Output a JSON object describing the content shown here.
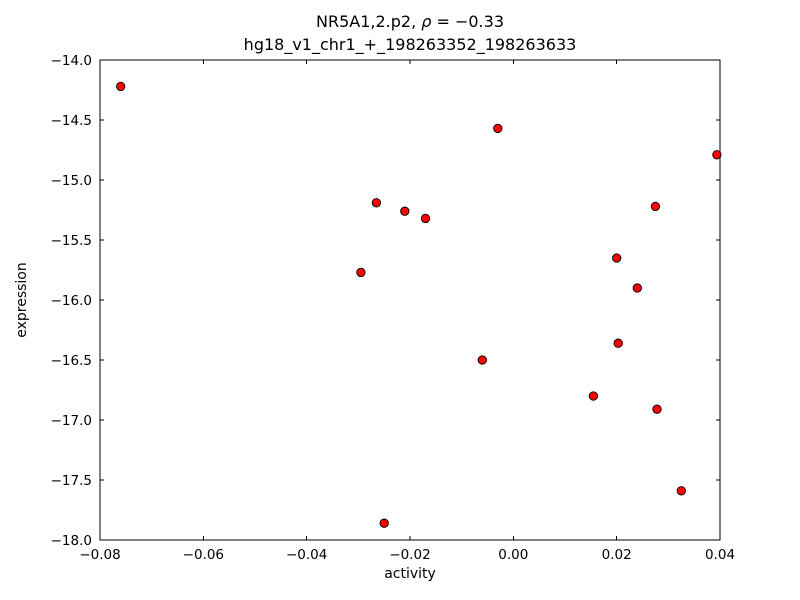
{
  "chart_data": {
    "type": "scatter",
    "title_prefix": "NR5A1,2.p2, ",
    "title_rho_symbol": "ρ",
    "title_rho_value": " = −0.33",
    "subtitle": "hg18_v1_chr1_+_198263352_198263633",
    "rho": -0.33,
    "xlabel": "activity",
    "ylabel": "expression",
    "xlim": [
      -0.08,
      0.04
    ],
    "ylim": [
      -18.0,
      -14.0
    ],
    "grid": false,
    "legend": "none",
    "xticks": {
      "values": [
        -0.08,
        -0.06,
        -0.04,
        -0.02,
        0.0,
        0.02,
        0.04
      ],
      "labels": [
        "−0.08",
        "−0.06",
        "−0.04",
        "−0.02",
        "0.00",
        "0.02",
        "0.04"
      ]
    },
    "yticks": {
      "values": [
        -14.0,
        -14.5,
        -15.0,
        -15.5,
        -16.0,
        -16.5,
        -17.0,
        -17.5,
        -18.0
      ],
      "labels": [
        "−14.0",
        "−14.5",
        "−15.0",
        "−15.5",
        "−16.0",
        "−16.5",
        "−17.0",
        "−17.5",
        "−18.0"
      ]
    },
    "points": [
      [
        -0.076,
        -14.22
      ],
      [
        -0.003,
        -14.57
      ],
      [
        0.0394,
        -14.79
      ],
      [
        -0.0265,
        -15.19
      ],
      [
        -0.021,
        -15.26
      ],
      [
        -0.017,
        -15.32
      ],
      [
        0.0275,
        -15.22
      ],
      [
        0.02,
        -15.65
      ],
      [
        -0.0295,
        -15.77
      ],
      [
        0.024,
        -15.9
      ],
      [
        0.0203,
        -16.36
      ],
      [
        -0.006,
        -16.5
      ],
      [
        0.0155,
        -16.8
      ],
      [
        0.0278,
        -16.91
      ],
      [
        0.0325,
        -17.59
      ],
      [
        -0.025,
        -17.86
      ]
    ],
    "marker": {
      "shape": "circle",
      "fill": "#ff0000",
      "edge": "#000000",
      "radius": 4.2
    }
  }
}
